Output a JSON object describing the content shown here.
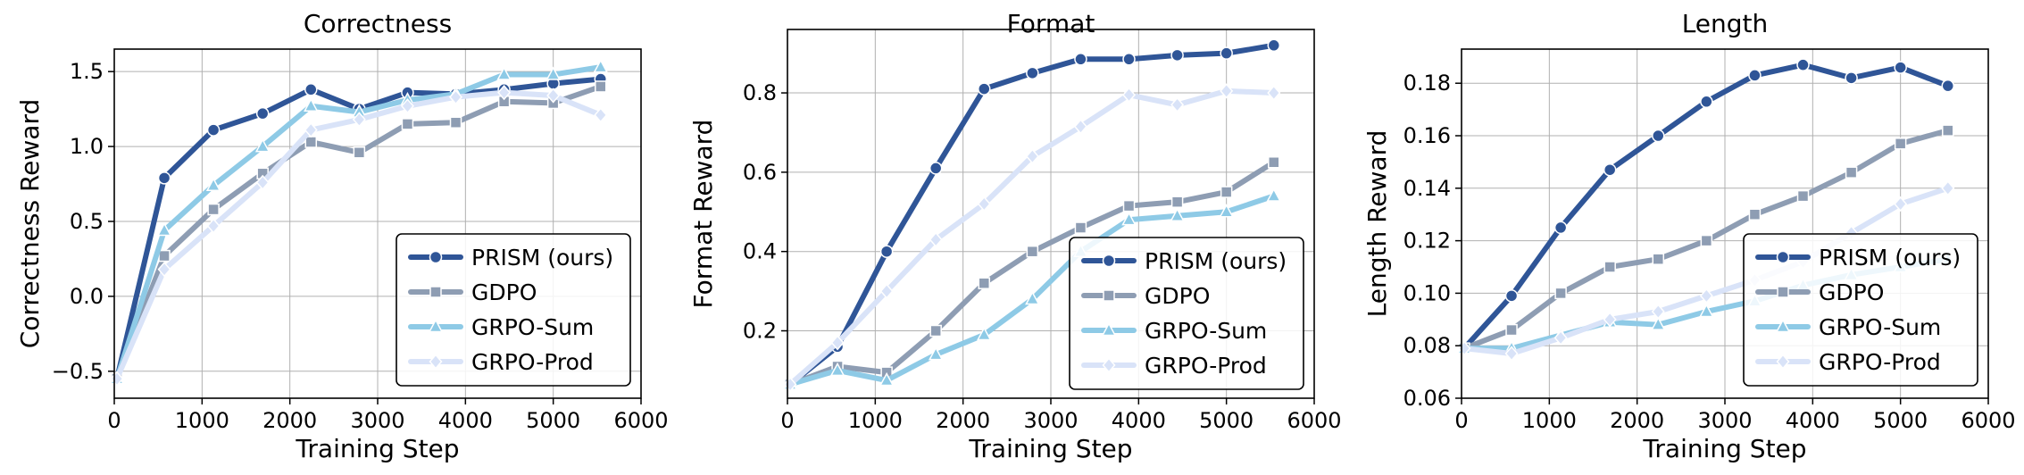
{
  "chart_data": [
    {
      "type": "line",
      "title": "Correctness",
      "xlabel": "Training Step",
      "ylabel": "Correctness Reward",
      "xlim": [
        0,
        6000
      ],
      "ylim": [
        -0.68,
        1.65
      ],
      "xticks": [
        0,
        1000,
        2000,
        3000,
        4000,
        5000,
        6000
      ],
      "yticks": [
        -0.5,
        0.0,
        0.5,
        1.0,
        1.5
      ],
      "ytick_labels": [
        "−0.5",
        "0.0",
        "0.5",
        "1.0",
        "1.5"
      ],
      "grid": true,
      "legend_position": "lower right",
      "series": [
        {
          "name": "PRISM (ours)",
          "color": "#2f5597",
          "marker": "circle",
          "x": [
            30,
            570,
            1130,
            1690,
            2240,
            2790,
            3340,
            3890,
            4440,
            5000,
            5540
          ],
          "y": [
            -0.55,
            0.79,
            1.11,
            1.22,
            1.38,
            1.25,
            1.36,
            1.35,
            1.38,
            1.42,
            1.45
          ]
        },
        {
          "name": "GDPO",
          "color": "#8e9db3",
          "marker": "square",
          "x": [
            30,
            570,
            1130,
            1690,
            2240,
            2790,
            3340,
            3890,
            4440,
            5000,
            5540
          ],
          "y": [
            -0.55,
            0.27,
            0.58,
            0.82,
            1.03,
            0.96,
            1.15,
            1.16,
            1.3,
            1.29,
            1.4
          ]
        },
        {
          "name": "GRPO-Sum",
          "color": "#8ecae6",
          "marker": "triangle",
          "x": [
            30,
            570,
            1130,
            1690,
            2240,
            2790,
            3340,
            3890,
            4440,
            5000,
            5540
          ],
          "y": [
            -0.55,
            0.44,
            0.74,
            1.0,
            1.27,
            1.23,
            1.31,
            1.35,
            1.48,
            1.48,
            1.53
          ]
        },
        {
          "name": "GRPO-Prod",
          "color": "#d9e3f8",
          "marker": "diamond",
          "x": [
            30,
            570,
            1130,
            1690,
            2240,
            2790,
            3340,
            3890,
            4440,
            5000,
            5540
          ],
          "y": [
            -0.55,
            0.18,
            0.47,
            0.76,
            1.11,
            1.18,
            1.27,
            1.33,
            1.36,
            1.34,
            1.21
          ]
        }
      ]
    },
    {
      "type": "line",
      "title": "Format",
      "xlabel": "Training Step",
      "ylabel": "Format Reward",
      "xlim": [
        0,
        6000
      ],
      "ylim": [
        0.03,
        0.96
      ],
      "xticks": [
        0,
        1000,
        2000,
        3000,
        4000,
        5000,
        6000
      ],
      "yticks": [
        0.2,
        0.4,
        0.6,
        0.8
      ],
      "ytick_labels": [
        "0.2",
        "0.4",
        "0.6",
        "0.8"
      ],
      "grid": true,
      "legend_position": "lower right",
      "series": [
        {
          "name": "PRISM (ours)",
          "color": "#2f5597",
          "marker": "circle",
          "x": [
            30,
            570,
            1130,
            1690,
            2240,
            2790,
            3340,
            3890,
            4440,
            5000,
            5540
          ],
          "y": [
            0.065,
            0.16,
            0.4,
            0.61,
            0.81,
            0.85,
            0.885,
            0.885,
            0.895,
            0.9,
            0.92
          ]
        },
        {
          "name": "GDPO",
          "color": "#8e9db3",
          "marker": "square",
          "x": [
            30,
            570,
            1130,
            1690,
            2240,
            2790,
            3340,
            3890,
            4440,
            5000,
            5540
          ],
          "y": [
            0.065,
            0.11,
            0.095,
            0.2,
            0.32,
            0.4,
            0.46,
            0.515,
            0.525,
            0.55,
            0.625
          ]
        },
        {
          "name": "GRPO-Sum",
          "color": "#8ecae6",
          "marker": "triangle",
          "x": [
            30,
            570,
            1130,
            1690,
            2240,
            2790,
            3340,
            3890,
            4440,
            5000,
            5540
          ],
          "y": [
            0.065,
            0.1,
            0.075,
            0.14,
            0.19,
            0.28,
            0.4,
            0.48,
            0.49,
            0.5,
            0.54
          ]
        },
        {
          "name": "GRPO-Prod",
          "color": "#d9e3f8",
          "marker": "diamond",
          "x": [
            30,
            570,
            1130,
            1690,
            2240,
            2790,
            3340,
            3890,
            4440,
            5000,
            5540
          ],
          "y": [
            0.065,
            0.17,
            0.3,
            0.43,
            0.52,
            0.64,
            0.715,
            0.795,
            0.77,
            0.805,
            0.8
          ]
        }
      ]
    },
    {
      "type": "line",
      "title": "Length",
      "xlabel": "Training Step",
      "ylabel": "Length Reward",
      "xlim": [
        0,
        6000
      ],
      "ylim": [
        0.06,
        0.193
      ],
      "xticks": [
        0,
        1000,
        2000,
        3000,
        4000,
        5000,
        6000
      ],
      "yticks": [
        0.06,
        0.08,
        0.1,
        0.12,
        0.14,
        0.16,
        0.18
      ],
      "ytick_labels": [
        "0.06",
        "0.08",
        "0.10",
        "0.12",
        "0.14",
        "0.16",
        "0.18"
      ],
      "grid": true,
      "legend_position": "lower right",
      "series": [
        {
          "name": "PRISM (ours)",
          "color": "#2f5597",
          "marker": "circle",
          "x": [
            30,
            570,
            1130,
            1690,
            2240,
            2790,
            3340,
            3890,
            4440,
            5000,
            5540
          ],
          "y": [
            0.079,
            0.099,
            0.125,
            0.147,
            0.16,
            0.173,
            0.183,
            0.187,
            0.182,
            0.186,
            0.179
          ]
        },
        {
          "name": "GDPO",
          "color": "#8e9db3",
          "marker": "square",
          "x": [
            30,
            570,
            1130,
            1690,
            2240,
            2790,
            3340,
            3890,
            4440,
            5000,
            5540
          ],
          "y": [
            0.079,
            0.086,
            0.1,
            0.11,
            0.113,
            0.12,
            0.13,
            0.137,
            0.146,
            0.157,
            0.162
          ]
        },
        {
          "name": "GRPO-Sum",
          "color": "#8ecae6",
          "marker": "triangle",
          "x": [
            30,
            570,
            1130,
            1690,
            2240,
            2790,
            3340,
            3890,
            4440,
            5000,
            5540
          ],
          "y": [
            0.079,
            0.079,
            0.084,
            0.089,
            0.088,
            0.093,
            0.097,
            0.103,
            0.107,
            0.11,
            0.113
          ]
        },
        {
          "name": "GRPO-Prod",
          "color": "#d9e3f8",
          "marker": "diamond",
          "x": [
            30,
            570,
            1130,
            1690,
            2240,
            2790,
            3340,
            3890,
            4440,
            5000,
            5540
          ],
          "y": [
            0.079,
            0.077,
            0.083,
            0.09,
            0.093,
            0.099,
            0.105,
            0.112,
            0.123,
            0.134,
            0.14
          ]
        }
      ]
    }
  ]
}
